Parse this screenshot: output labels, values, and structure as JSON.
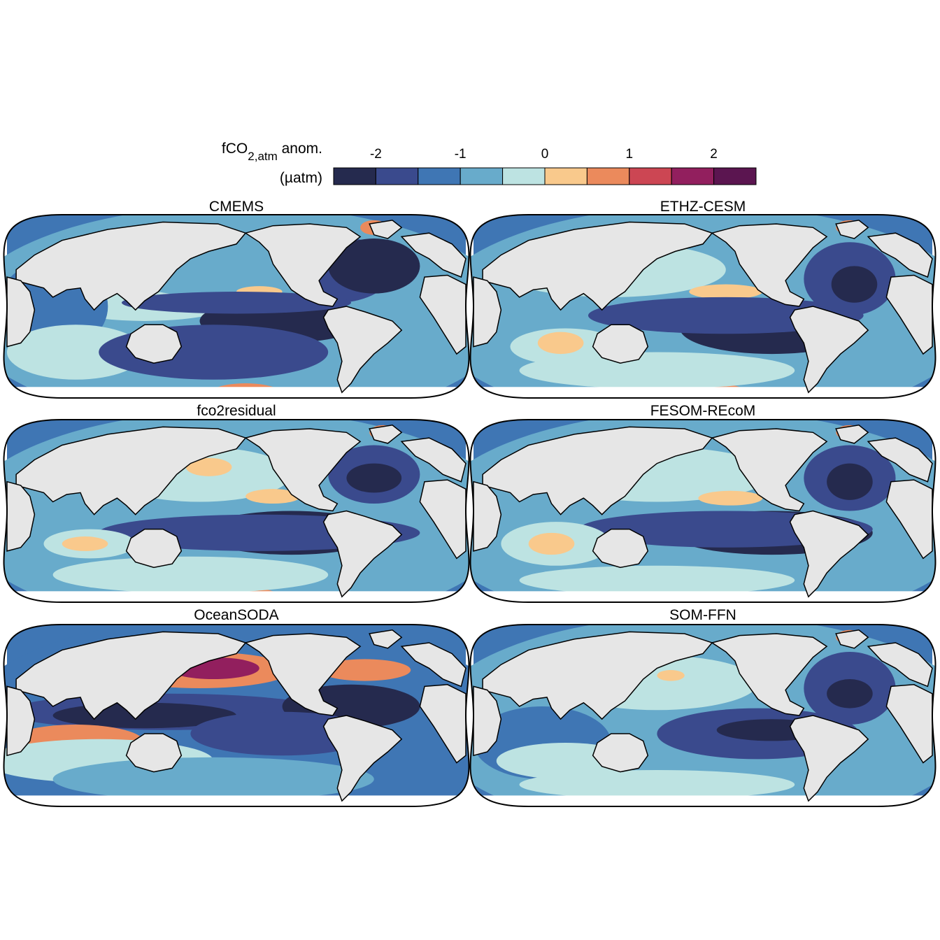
{
  "legend": {
    "title_main": "fCO",
    "title_sub": "2,atm",
    "title_rest": " anom.",
    "unit": "(µatm)",
    "ticks": [
      {
        "value": -2,
        "label": "-2"
      },
      {
        "value": -1,
        "label": "-1"
      },
      {
        "value": 0,
        "label": "0"
      },
      {
        "value": 1,
        "label": "1"
      },
      {
        "value": 2,
        "label": "2"
      }
    ],
    "range": [
      -2.5,
      2.5
    ],
    "step": 0.5,
    "colors": [
      "#252a4e",
      "#3a4a8d",
      "#3f76b4",
      "#68abcb",
      "#bde3e2",
      "#f9c98c",
      "#eb8a5c",
      "#cc4653",
      "#921f5e",
      "#5b1550"
    ]
  },
  "colors": {
    "land": "#e6e6e6",
    "coast": "#000000",
    "no_data": "#ffffff"
  },
  "panels": [
    {
      "title": "CMEMS"
    },
    {
      "title": "ETHZ-CESM"
    },
    {
      "title": "fco2residual"
    },
    {
      "title": "FESOM-REcoM"
    },
    {
      "title": "OceanSODA"
    },
    {
      "title": "SOM-FFN"
    }
  ]
}
